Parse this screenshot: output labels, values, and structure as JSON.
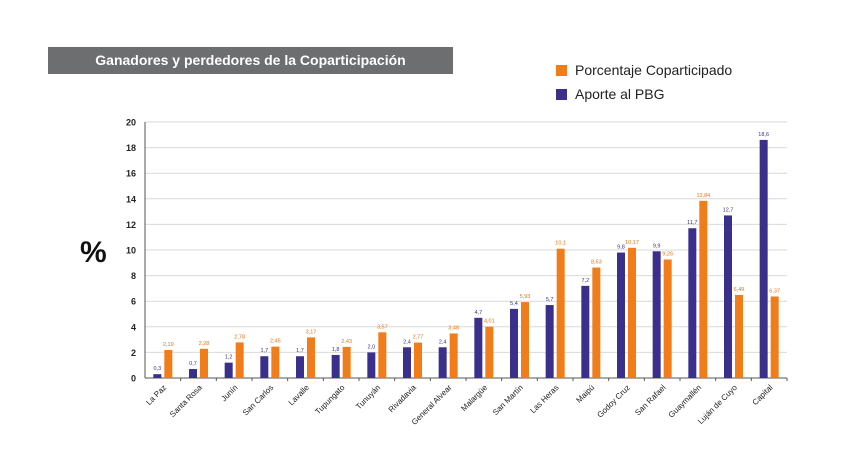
{
  "title": "Ganadores y perdedores de la Coparticipación",
  "y_unit": "%",
  "colors": {
    "pbg": "#3b2f8c",
    "copart": "#f07d1a",
    "grid": "#d9d9d9",
    "title_bg": "#6d6e70"
  },
  "chart_data": {
    "type": "bar",
    "ylabel": "%",
    "ylim": [
      0,
      20
    ],
    "yticks": [
      0,
      2,
      4,
      6,
      8,
      10,
      12,
      14,
      16,
      18,
      20
    ],
    "grid": true,
    "legend_position": "top-right",
    "categories": [
      "La Paz",
      "Santa Rosa",
      "Junín",
      "San Carlos",
      "Lavalle",
      "Tupungato",
      "Tunuyán",
      "Rivadavia",
      "General Alvear",
      "Malargüe",
      "San Martín",
      "Las Heras",
      "Maipú",
      "Godoy Cruz",
      "San Rafael",
      "Guaymallén",
      "Luján de Cuyo",
      "Capital"
    ],
    "series": [
      {
        "name": "Aporte al PBG",
        "color": "#3b2f8c",
        "values": [
          0.3,
          0.7,
          1.2,
          1.7,
          1.7,
          1.8,
          2.0,
          2.4,
          2.4,
          4.7,
          5.4,
          5.7,
          7.2,
          9.8,
          9.9,
          11.7,
          12.7,
          18.6
        ],
        "labels": [
          "0,3",
          "0,7",
          "1,2",
          "1,7",
          "1,7",
          "1,8",
          "2,0",
          "2,4",
          "2,4",
          "4,7",
          "5,4",
          "5,7",
          "7,2",
          "9,8",
          "9,9",
          "11,7",
          "12,7",
          "18,6"
        ]
      },
      {
        "name": "Porcentaje Coparticipado",
        "color": "#f07d1a",
        "values": [
          2.19,
          2.28,
          2.78,
          2.45,
          3.17,
          2.43,
          3.57,
          2.77,
          3.48,
          4.01,
          5.93,
          10.1,
          8.63,
          10.17,
          9.26,
          13.84,
          6.49,
          6.37
        ],
        "labels": [
          "2,19",
          "2,28",
          "2,78",
          "2,45",
          "3,17",
          "2,43",
          "3,57",
          "2,77",
          "3,48",
          "4,01",
          "5,93",
          "10,1",
          "8,63",
          "10,17",
          "9,26",
          "13,84",
          "6,49",
          "6,37"
        ]
      }
    ]
  }
}
